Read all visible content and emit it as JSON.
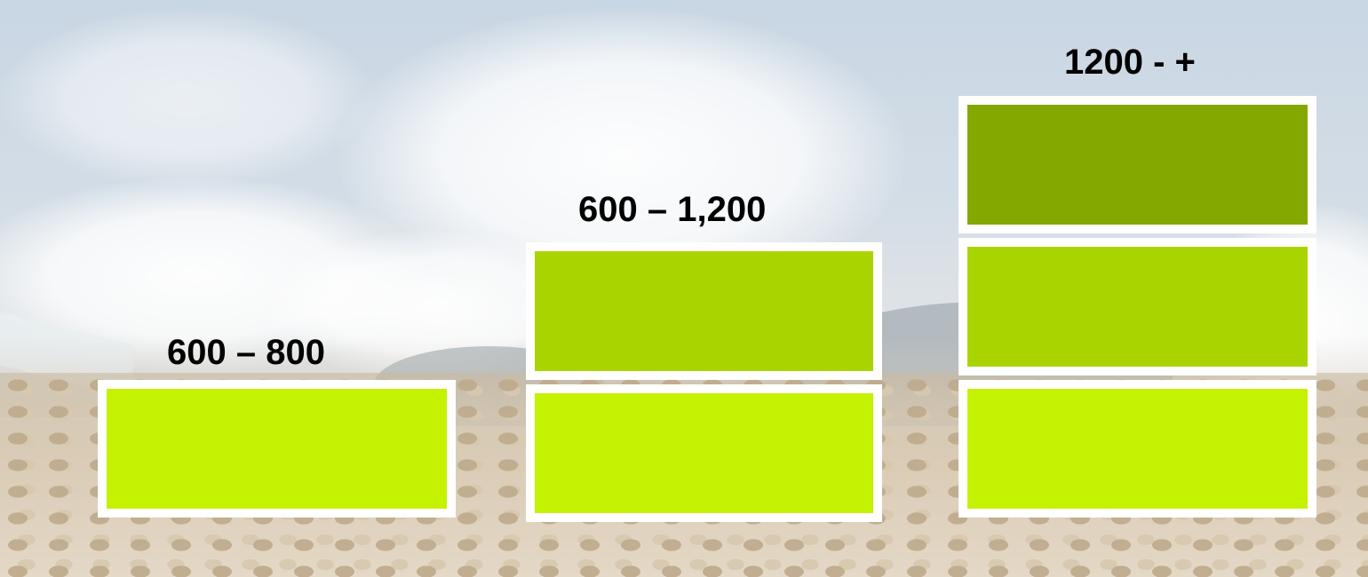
{
  "tiers": [
    {
      "label": "600 – 800",
      "blocks": [
        {
          "color": "#c5f200"
        }
      ]
    },
    {
      "label": "600 – 1,200",
      "blocks": [
        {
          "color": "#a9d400"
        },
        {
          "color": "#c5f200"
        }
      ]
    },
    {
      "label": "1200 - +",
      "blocks": [
        {
          "color": "#84a800"
        },
        {
          "color": "#a9d400"
        },
        {
          "color": "#c5f200"
        }
      ]
    }
  ],
  "background": {
    "description_icon": "coffee-beans-drying-photo-icon"
  }
}
